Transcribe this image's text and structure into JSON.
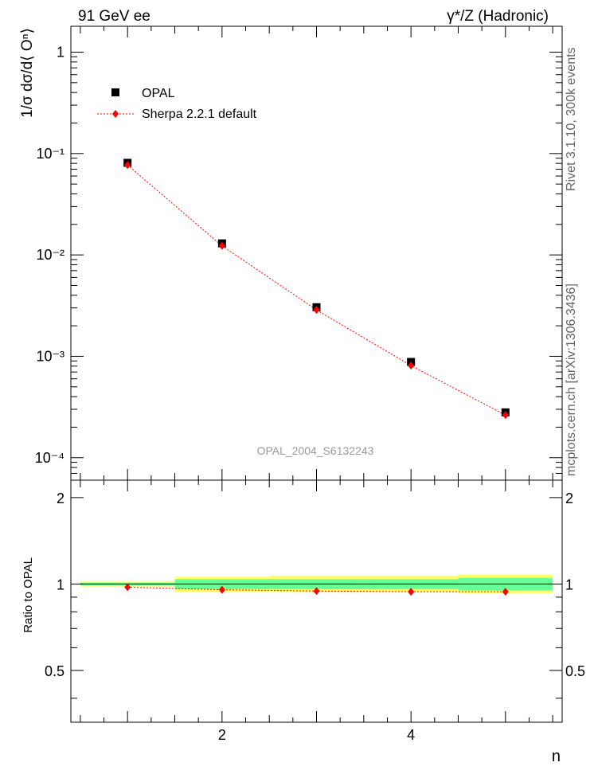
{
  "header": {
    "left_title": "91 GeV ee",
    "right_title": "γ*/Z (Hadronic)"
  },
  "side_labels": {
    "rivet": "Rivet 3.1.10,  300k events",
    "source": "mcplots.cern.ch [arXiv:1306.3436]"
  },
  "watermark": "OPAL_2004_S6132243",
  "chart_data": [
    {
      "type": "scatter",
      "panel": "main",
      "ylabel": "1/σ dσ/d⟨ Oⁿ⟩",
      "yscale": "log",
      "ylim": [
        6e-05,
        1.8
      ],
      "xlim": [
        0.4,
        5.6
      ],
      "ytick_labels": [
        "1",
        "10⁻¹",
        "10⁻²",
        "10⁻³",
        "10⁻⁴"
      ],
      "ytick_values": [
        1,
        0.1,
        0.01,
        0.001,
        0.0001
      ],
      "legend_position": "top-left",
      "series": [
        {
          "name": "OPAL",
          "style": "marker",
          "color": "#000000",
          "x": [
            1,
            2,
            3,
            4,
            5
          ],
          "values": [
            0.081,
            0.013,
            0.00305,
            0.00088,
            0.00028
          ]
        },
        {
          "name": "Sherpa 2.2.1 default",
          "style": "line+marker",
          "color": "#ff0000",
          "x": [
            1,
            2,
            3,
            4,
            5
          ],
          "values": [
            0.077,
            0.0123,
            0.00287,
            0.00081,
            0.000263
          ]
        }
      ]
    },
    {
      "type": "line",
      "panel": "ratio",
      "xlabel": "n",
      "ylabel": "Ratio to OPAL",
      "xlim": [
        0.4,
        5.6
      ],
      "ylim": [
        0.33,
        2.3
      ],
      "xtick_labels": [
        "2",
        "4"
      ],
      "xtick_values": [
        2,
        4
      ],
      "ytick_labels": [
        "2",
        "1",
        "0.5"
      ],
      "ytick_values": [
        2,
        1,
        0.5
      ],
      "bands": {
        "bin_edges": [
          0.5,
          1.5,
          2.5,
          3.5,
          4.5,
          5.5
        ],
        "yellow": [
          [
            0.98,
            1.02
          ],
          [
            0.94,
            1.06
          ],
          [
            0.94,
            1.07
          ],
          [
            0.94,
            1.07
          ],
          [
            0.93,
            1.08
          ]
        ],
        "green": [
          [
            0.99,
            1.01
          ],
          [
            0.96,
            1.04
          ],
          [
            0.96,
            1.04
          ],
          [
            0.96,
            1.04
          ],
          [
            0.95,
            1.05
          ]
        ]
      },
      "series": [
        {
          "name": "Sherpa 2.2.1 default",
          "color": "#ff0000",
          "x": [
            1,
            2,
            3,
            4,
            5
          ],
          "values": [
            0.975,
            0.955,
            0.945,
            0.94,
            0.94
          ]
        }
      ]
    }
  ]
}
